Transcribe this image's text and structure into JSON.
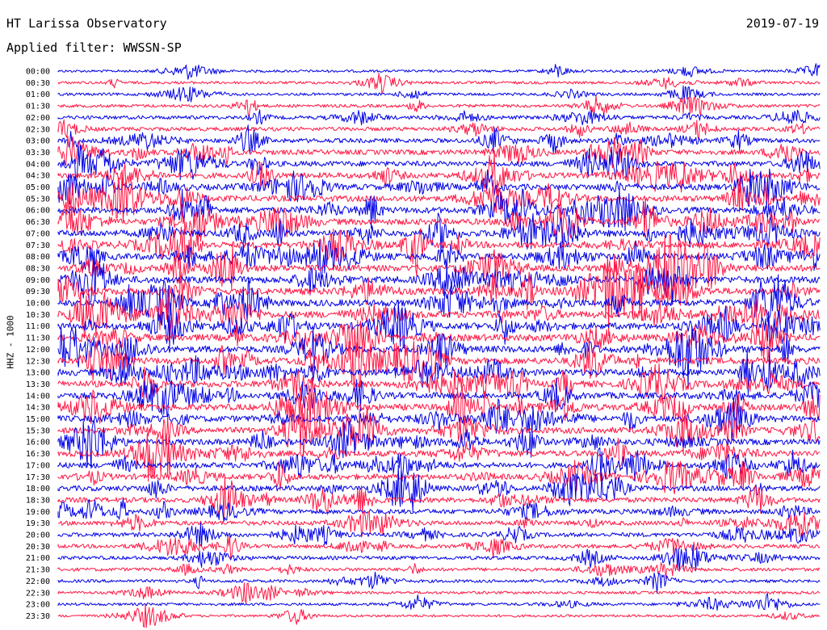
{
  "header": {
    "title": "HT Larissa Observatory",
    "date": "2019-07-19",
    "filter": "Applied filter: WWSSN-SP"
  },
  "chart_data": {
    "type": "line",
    "title": "HT Larissa Observatory",
    "ylabel": "HHZ - 1000",
    "rows": [
      "00:00",
      "00:30",
      "01:00",
      "01:30",
      "02:00",
      "02:30",
      "03:00",
      "03:30",
      "04:00",
      "04:30",
      "05:00",
      "05:30",
      "06:00",
      "06:30",
      "07:00",
      "07:30",
      "08:00",
      "08:30",
      "09:00",
      "09:30",
      "10:00",
      "10:30",
      "11:00",
      "11:30",
      "12:00",
      "12:30",
      "13:00",
      "13:30",
      "14:00",
      "14:30",
      "15:00",
      "15:30",
      "16:00",
      "16:30",
      "17:00",
      "17:30",
      "18:00",
      "18:30",
      "19:00",
      "19:30",
      "20:00",
      "20:30",
      "21:00",
      "21:30",
      "22:00",
      "22:30",
      "23:00",
      "23:30"
    ],
    "row_activity": [
      0.15,
      0.2,
      0.2,
      0.25,
      0.35,
      0.4,
      0.5,
      0.6,
      0.65,
      0.7,
      0.75,
      0.75,
      0.8,
      0.8,
      0.85,
      0.85,
      0.85,
      0.85,
      0.9,
      0.9,
      0.9,
      0.9,
      0.9,
      0.9,
      0.9,
      0.9,
      0.85,
      0.85,
      0.85,
      0.85,
      0.8,
      0.8,
      0.75,
      0.75,
      0.7,
      0.7,
      0.65,
      0.6,
      0.55,
      0.5,
      0.45,
      0.4,
      0.35,
      0.3,
      0.25,
      0.2,
      0.2,
      0.15
    ],
    "series": [
      {
        "color": "#0000e6"
      },
      {
        "color": "#ff1744"
      }
    ],
    "grid": false,
    "legend": "none"
  }
}
